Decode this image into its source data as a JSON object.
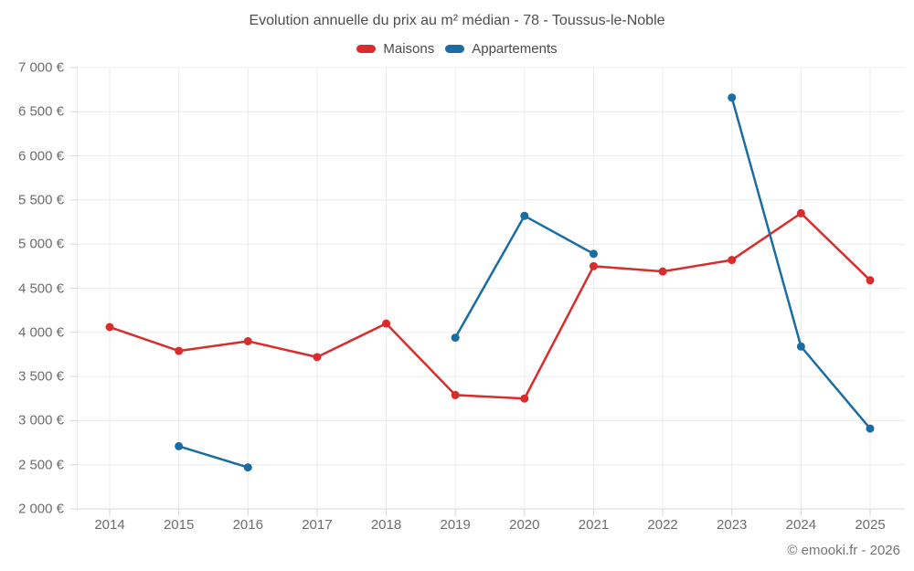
{
  "title": "Evolution annuelle du prix au m² médian - 78 - Toussus-le-Noble",
  "footer": "© emooki.fr - 2026",
  "legend": [
    {
      "label": "Maisons",
      "color": "#d92c2c"
    },
    {
      "label": "Appartements",
      "color": "#1a6da3"
    }
  ],
  "colors": {
    "maisons": "#d92c2c",
    "appartements": "#1a6da3",
    "gridline": "#ececec",
    "axis_line": "#d8d8d8",
    "tick": "#d8d8d8",
    "title_text": "#4e4e4e",
    "axis_text": "#6d6d6d"
  },
  "chart_data": {
    "type": "line",
    "x": [
      2014,
      2015,
      2016,
      2017,
      2018,
      2019,
      2020,
      2021,
      2022,
      2023,
      2024,
      2025
    ],
    "series": [
      {
        "name": "Maisons",
        "color": "#d92c2c",
        "values": [
          4060,
          3790,
          3900,
          3720,
          4100,
          3290,
          3250,
          4750,
          4690,
          4820,
          5350,
          4590
        ]
      },
      {
        "name": "Appartements",
        "color": "#1a6da3",
        "values": [
          null,
          2710,
          2470,
          null,
          null,
          3940,
          5320,
          4890,
          null,
          6660,
          3840,
          2910
        ]
      }
    ],
    "title": "Evolution annuelle du prix au m² médian - 78 - Toussus-le-Noble",
    "xlabel": "",
    "ylabel": "",
    "ylim": [
      2000,
      7000
    ],
    "yticks": [
      2000,
      2500,
      3000,
      3500,
      4000,
      4500,
      5000,
      5500,
      6000,
      6500,
      7000
    ],
    "ytick_labels": [
      "2 000 €",
      "2 500 €",
      "3 000 €",
      "3 500 €",
      "4 000 €",
      "4 500 €",
      "5 000 €",
      "5 500 €",
      "6 000 €",
      "6 500 €",
      "7 000 €"
    ],
    "grid": true,
    "legend_position": "top"
  }
}
